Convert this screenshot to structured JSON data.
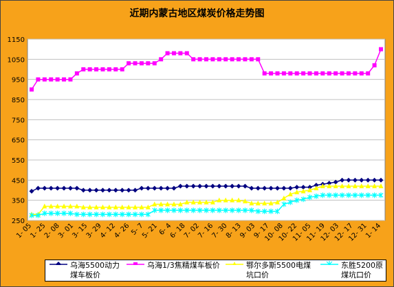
{
  "chart_data": {
    "type": "line",
    "title": "近期内蒙古地区煤炭价格走势图",
    "ylim": [
      250,
      1150
    ],
    "yticks": [
      250,
      350,
      450,
      550,
      650,
      750,
      850,
      950,
      1050,
      1150
    ],
    "xlabels": [
      "1- 05",
      "1- 25",
      "2- 08",
      "3- 01",
      "3- 15",
      "3- 29",
      "4- 12",
      "4- 26",
      "5- 7",
      "5- 21",
      "6- 4",
      "6- 18",
      "7- 02",
      "7- 16",
      "7- 30",
      "8- 13",
      "9- 03",
      "9- 17",
      "10- 08",
      "10- 22",
      "11- 05",
      "11- 19",
      "12- 03",
      "12- 17",
      "12- 31",
      "1- 14"
    ],
    "grid": true,
    "legend_position": "bottom",
    "series": [
      {
        "name": "乌海5500动力煤车板价",
        "color": "#000080",
        "marker": "diamond",
        "values": [
          395,
          410,
          410,
          410,
          410,
          410,
          410,
          410,
          400,
          400,
          400,
          400,
          400,
          400,
          400,
          400,
          400,
          410,
          410,
          410,
          410,
          410,
          410,
          420,
          420,
          420,
          420,
          420,
          420,
          420,
          420,
          420,
          420,
          420,
          410,
          410,
          410,
          410,
          410,
          410,
          410,
          415,
          415,
          415,
          425,
          430,
          435,
          440,
          450,
          450,
          450,
          450,
          450,
          450,
          450
        ]
      },
      {
        "name": "乌海1/3焦精煤车板价",
        "color": "#ff00ff",
        "marker": "square",
        "values": [
          900,
          950,
          950,
          950,
          950,
          950,
          950,
          980,
          1000,
          1000,
          1000,
          1000,
          1000,
          1000,
          1000,
          1030,
          1030,
          1030,
          1030,
          1030,
          1050,
          1080,
          1080,
          1080,
          1080,
          1050,
          1050,
          1050,
          1050,
          1050,
          1050,
          1050,
          1050,
          1050,
          1050,
          1050,
          980,
          980,
          980,
          980,
          980,
          980,
          980,
          980,
          980,
          980,
          980,
          980,
          980,
          980,
          980,
          980,
          980,
          1020,
          1100
        ]
      },
      {
        "name": "鄂尔多斯5500电煤坑口价",
        "color": "#ffff00",
        "marker": "triangle",
        "values": [
          280,
          280,
          320,
          320,
          320,
          320,
          320,
          320,
          315,
          315,
          315,
          315,
          315,
          315,
          315,
          315,
          315,
          315,
          315,
          330,
          330,
          330,
          330,
          330,
          340,
          340,
          340,
          340,
          340,
          350,
          350,
          350,
          350,
          345,
          335,
          335,
          335,
          335,
          340,
          360,
          380,
          390,
          395,
          400,
          410,
          420,
          420,
          420,
          420,
          420,
          420,
          420,
          420,
          420,
          420
        ]
      },
      {
        "name": "东胜5200原煤坑口价",
        "color": "#00ffff",
        "marker": "star",
        "values": [
          275,
          275,
          285,
          285,
          285,
          285,
          285,
          280,
          280,
          280,
          280,
          280,
          280,
          280,
          280,
          280,
          280,
          280,
          280,
          300,
          300,
          300,
          300,
          300,
          300,
          300,
          300,
          300,
          300,
          300,
          300,
          300,
          300,
          300,
          300,
          295,
          295,
          295,
          295,
          330,
          340,
          350,
          355,
          365,
          370,
          375,
          375,
          375,
          375,
          375,
          375,
          375,
          375,
          375,
          375
        ]
      }
    ]
  }
}
